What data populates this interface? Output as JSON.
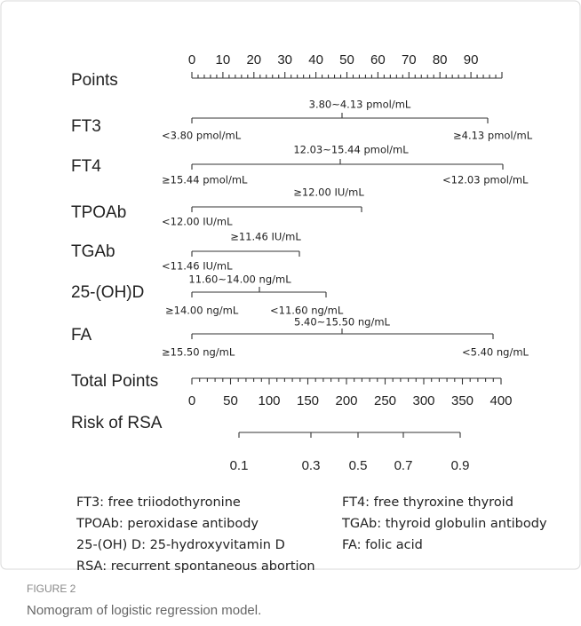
{
  "figure": {
    "points": {
      "label": "Points",
      "ticks": [
        0,
        10,
        20,
        30,
        40,
        50,
        60,
        70,
        80,
        90
      ]
    },
    "rows": [
      {
        "label": "FT3",
        "top": "3.80~4.13 pmol/mL",
        "left": "<3.80 pmol/mL",
        "right": "≥4.13 pmol/mL"
      },
      {
        "label": "FT4",
        "top": "12.03~15.44 pmol/mL",
        "left": "≥15.44 pmol/mL",
        "right": "<12.03 pmol/mL"
      },
      {
        "label": "TPOAb",
        "top": "≥12.00 IU/mL",
        "left": "<12.00 IU/mL"
      },
      {
        "label": "TGAb",
        "top": "≥11.46 IU/mL",
        "left": "<11.46 IU/mL"
      },
      {
        "label": "25-(OH)D",
        "top": "11.60~14.00 ng/mL",
        "left": "≥14.00 ng/mL",
        "right": "<11.60 ng/mL"
      },
      {
        "label": "FA",
        "top": "5.40~15.50 ng/mL",
        "left": "≥15.50 ng/mL",
        "right": "<5.40 ng/mL"
      }
    ],
    "total": {
      "label": "Total Points",
      "ticks": [
        0,
        50,
        100,
        150,
        200,
        250,
        300,
        350,
        400
      ]
    },
    "risk": {
      "label": "Risk of RSA",
      "ticks": [
        0.1,
        0.3,
        0.5,
        0.7,
        0.9
      ]
    },
    "legend": [
      [
        "FT3: free triiodothyronine",
        "FT4: free thyroxine thyroid"
      ],
      [
        "TPOAb:  peroxidase antibody",
        "TGAb: thyroid globulin antibody"
      ],
      [
        "25-(OH) D: 25-hydroxyvitamin D",
        "FA: folic acid"
      ],
      [
        "RSA: recurrent spontaneous abortion"
      ]
    ],
    "figure_label": "FIGURE 2",
    "caption": "Nomogram of logistic regression model."
  }
}
